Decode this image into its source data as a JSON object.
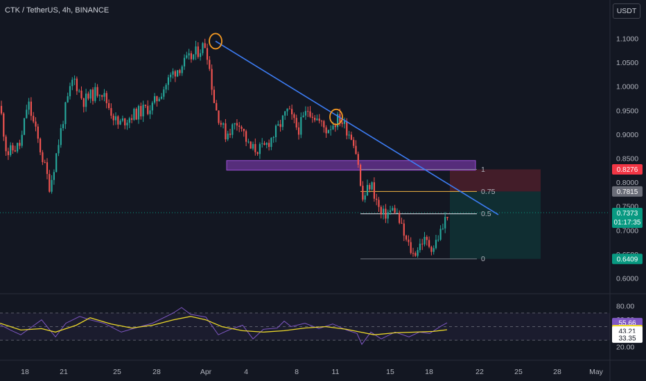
{
  "header": {
    "symbol_title": "CTK / TetherUS, 4h, BINANCE",
    "currency_button": "USDT"
  },
  "colors": {
    "background": "#131722",
    "bull": "#26a69a",
    "bear": "#ef5350",
    "trendline": "#3d7df5",
    "zone": "#8e3fc4",
    "fib_line": "#ffffff",
    "fib_075": "#f5b843",
    "rsi": "#7e57c2",
    "rsi_ma": "#ecd82a",
    "circle": "#f59a23"
  },
  "chart_data": [
    {
      "type": "candlestick",
      "title": "CTK / TetherUS, 4h, BINANCE",
      "x_tick_labels": [
        "18",
        "21",
        "25",
        "28",
        "Apr",
        "4",
        "8",
        "11",
        "15",
        "18",
        "22",
        "25",
        "28",
        "May"
      ],
      "y_tick_labels": [
        "1.1000",
        "1.0500",
        "1.0000",
        "0.9500",
        "0.9000",
        "0.8500",
        "0.8000",
        "0.7500",
        "0.7000",
        "0.6500",
        "0.6000"
      ],
      "ylim": [
        0.58,
        1.14
      ],
      "last_price": 0.7373,
      "countdown": "01:17:35",
      "price_badges": [
        {
          "value": "0.8276",
          "color": "#f23645"
        },
        {
          "value": "0.7815",
          "color": "#6a6d78"
        },
        {
          "value": "0.6409",
          "color": "#089981"
        }
      ],
      "anchors": [
        {
          "x": 0,
          "price": 0.96
        },
        {
          "x": 10,
          "price": 0.86
        },
        {
          "x": 30,
          "price": 0.88
        },
        {
          "x": 40,
          "price": 0.97
        },
        {
          "x": 58,
          "price": 0.87
        },
        {
          "x": 72,
          "price": 0.79
        },
        {
          "x": 92,
          "price": 0.94
        },
        {
          "x": 106,
          "price": 1.02
        },
        {
          "x": 120,
          "price": 0.97
        },
        {
          "x": 145,
          "price": 0.995
        },
        {
          "x": 170,
          "price": 0.92
        },
        {
          "x": 190,
          "price": 0.94
        },
        {
          "x": 220,
          "price": 0.96
        },
        {
          "x": 250,
          "price": 1.03
        },
        {
          "x": 275,
          "price": 1.06
        },
        {
          "x": 297,
          "price": 1.09
        },
        {
          "x": 310,
          "price": 0.96
        },
        {
          "x": 325,
          "price": 0.9
        },
        {
          "x": 345,
          "price": 0.93
        },
        {
          "x": 360,
          "price": 0.87
        },
        {
          "x": 380,
          "price": 0.87
        },
        {
          "x": 400,
          "price": 0.91
        },
        {
          "x": 415,
          "price": 0.95
        },
        {
          "x": 430,
          "price": 0.91
        },
        {
          "x": 445,
          "price": 0.955
        },
        {
          "x": 470,
          "price": 0.91
        },
        {
          "x": 490,
          "price": 0.935
        },
        {
          "x": 510,
          "price": 0.89
        },
        {
          "x": 517,
          "price": 0.84
        },
        {
          "x": 522,
          "price": 0.76
        },
        {
          "x": 535,
          "price": 0.8
        },
        {
          "x": 550,
          "price": 0.73
        },
        {
          "x": 570,
          "price": 0.745
        },
        {
          "x": 585,
          "price": 0.68
        },
        {
          "x": 596,
          "price": 0.65
        },
        {
          "x": 610,
          "price": 0.68
        },
        {
          "x": 625,
          "price": 0.665
        },
        {
          "x": 640,
          "price": 0.71
        },
        {
          "x": 645,
          "price": 0.7373
        }
      ],
      "annotations": {
        "trendline": [
          {
            "x": 311,
            "price": 1.095
          },
          {
            "x": 719,
            "price": 0.733
          }
        ],
        "circles": [
          {
            "x": 311,
            "price": 1.095
          },
          {
            "x": 485,
            "price": 0.937
          }
        ],
        "zone": {
          "x1": 327,
          "x2": 686,
          "top": 0.846,
          "bottom": 0.826
        },
        "fib_levels": [
          {
            "label": "1",
            "price": 0.8276,
            "x1": 520,
            "x2": 688,
            "color": "#787b86"
          },
          {
            "label": "0.75",
            "price": 0.7815,
            "x1": 520,
            "x2": 688,
            "color": "#f5b843"
          },
          {
            "label": "0.5",
            "price": 0.735,
            "x1": 520,
            "x2": 688,
            "color": "#e0e3eb"
          },
          {
            "label": "0",
            "price": 0.6409,
            "x1": 520,
            "x2": 688,
            "color": "#787b86"
          }
        ],
        "risk_box": {
          "x1": 649,
          "x2": 780,
          "top": 0.8276,
          "entry": 0.7815,
          "bottom": 0.6409
        }
      }
    },
    {
      "type": "line",
      "title": "",
      "y_tick_labels": [
        "80.00",
        "60.00",
        "20.00"
      ],
      "ylim": [
        17,
        85
      ],
      "bands": [
        70,
        50,
        30
      ],
      "badges": [
        {
          "value": "55.66",
          "color": "#7e57c2",
          "text_color": "#ffffff"
        },
        {
          "value": "45.40",
          "color": "#ecd82a",
          "text_color": "#131722"
        },
        {
          "value": "43.21",
          "color": "#ffffff",
          "text_color": "#131722"
        },
        {
          "value": "33.35",
          "color": "#ffffff",
          "text_color": "#131722"
        }
      ],
      "series": [
        {
          "color": "#7e57c2",
          "points": [
            [
              0,
              53
            ],
            [
              15,
              45
            ],
            [
              30,
              38
            ],
            [
              45,
              49
            ],
            [
              60,
              60
            ],
            [
              80,
              35
            ],
            [
              95,
              55
            ],
            [
              115,
              65
            ],
            [
              130,
              60
            ],
            [
              150,
              55
            ],
            [
              175,
              42
            ],
            [
              195,
              48
            ],
            [
              220,
              55
            ],
            [
              250,
              70
            ],
            [
              262,
              78
            ],
            [
              275,
              68
            ],
            [
              297,
              64
            ],
            [
              315,
              38
            ],
            [
              330,
              45
            ],
            [
              350,
              52
            ],
            [
              365,
              32
            ],
            [
              380,
              46
            ],
            [
              400,
              48
            ],
            [
              410,
              58
            ],
            [
              420,
              50
            ],
            [
              440,
              55
            ],
            [
              460,
              47
            ],
            [
              480,
              54
            ],
            [
              500,
              45
            ],
            [
              515,
              40
            ],
            [
              522,
              24
            ],
            [
              535,
              42
            ],
            [
              550,
              32
            ],
            [
              570,
              42
            ],
            [
              590,
              35
            ],
            [
              605,
              42
            ],
            [
              620,
              40
            ],
            [
              635,
              50
            ],
            [
              645,
              55.66
            ]
          ]
        },
        {
          "color": "#ecd82a",
          "points": [
            [
              0,
              55
            ],
            [
              30,
              45
            ],
            [
              60,
              47
            ],
            [
              80,
              42
            ],
            [
              110,
              52
            ],
            [
              130,
              63
            ],
            [
              160,
              54
            ],
            [
              190,
              48
            ],
            [
              220,
              52
            ],
            [
              250,
              60
            ],
            [
              275,
              65
            ],
            [
              297,
              60
            ],
            [
              320,
              50
            ],
            [
              350,
              44
            ],
            [
              380,
              42
            ],
            [
              410,
              44
            ],
            [
              440,
              48
            ],
            [
              470,
              50
            ],
            [
              500,
              46
            ],
            [
              520,
              42
            ],
            [
              540,
              38
            ],
            [
              570,
              41
            ],
            [
              600,
              42
            ],
            [
              625,
              43
            ],
            [
              645,
              45.4
            ]
          ]
        }
      ]
    }
  ]
}
